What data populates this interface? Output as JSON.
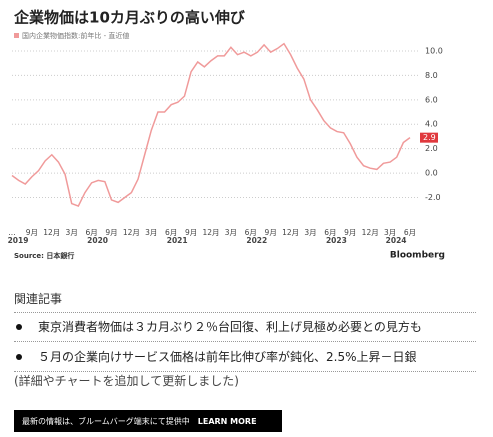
{
  "chart_data": {
    "type": "line",
    "title": "企業物価は10カ月ぶりの高い伸び",
    "source": "Source: 日本銀行",
    "brand": "Bloomberg",
    "categories": [
      "...",
      null,
      null,
      "9月",
      null,
      null,
      "12月",
      null,
      null,
      "3月",
      null,
      null,
      "6月",
      null,
      null,
      "9月",
      null,
      null,
      "12月",
      null,
      null,
      "3月",
      null,
      null,
      "6月",
      null,
      null,
      "9月",
      null,
      null,
      "12月",
      null,
      null,
      "3月",
      null,
      null,
      "6月",
      null,
      null,
      "9月",
      null,
      null,
      "12月",
      null,
      null,
      "3月",
      null,
      null,
      "6月",
      null,
      null,
      "9月",
      null,
      null,
      "12月",
      null,
      null,
      "3月",
      null,
      null,
      "6月"
    ],
    "years": [
      "2019",
      null,
      null,
      null,
      null,
      null,
      null,
      null,
      null,
      null,
      null,
      null,
      "2020",
      null,
      null,
      null,
      null,
      null,
      null,
      null,
      null,
      null,
      null,
      null,
      "2021",
      null,
      null,
      null,
      null,
      null,
      null,
      null,
      null,
      null,
      null,
      null,
      "2022",
      null,
      null,
      null,
      null,
      null,
      null,
      null,
      null,
      null,
      null,
      null,
      "2023",
      null,
      null,
      null,
      null,
      null,
      null,
      null,
      null,
      "2024",
      null,
      null,
      null
    ],
    "series": [
      {
        "name": "国内企業物価指数:前年比 - 直近値",
        "color": "#f09a9a",
        "values": [
          -0.2,
          -0.6,
          -0.9,
          -0.3,
          0.2,
          1.0,
          1.5,
          0.9,
          -0.1,
          -2.5,
          -2.7,
          -1.6,
          -0.8,
          -0.6,
          -0.7,
          -2.2,
          -2.4,
          -2.0,
          -1.6,
          -0.5,
          1.5,
          3.5,
          5.0,
          5.0,
          5.6,
          5.8,
          6.3,
          8.3,
          9.1,
          8.7,
          9.2,
          9.6,
          9.6,
          10.3,
          9.7,
          9.9,
          9.6,
          9.9,
          10.5,
          9.9,
          10.2,
          10.6,
          9.7,
          8.6,
          7.7,
          6.0,
          5.2,
          4.3,
          3.7,
          3.4,
          3.3,
          2.4,
          1.3,
          0.6,
          0.4,
          0.3,
          0.8,
          0.9,
          1.3,
          2.5,
          2.9
        ]
      }
    ],
    "last_label_color": "#e0393e",
    "ylim": [
      -4.5,
      10.9
    ],
    "yticks": [
      {
        "value": -2,
        "label": "-2.0"
      },
      {
        "value": 0,
        "label": "0.0"
      },
      {
        "value": 2,
        "label": "2.0"
      },
      {
        "value": 4,
        "label": "4.0"
      },
      {
        "value": 6,
        "label": "6.0"
      },
      {
        "value": 8,
        "label": "8.0"
      },
      {
        "value": 10,
        "label": "10.0"
      }
    ],
    "grid": true
  },
  "related": {
    "heading": "関連記事",
    "items": [
      "東京消費者物価は３カ月ぶり２％台回復、利上げ見極め必要との見方も",
      "５月の企業向けサービス価格は前年比伸び率が鈍化、2.5%上昇－日銀"
    ]
  },
  "note": "(詳細やチャートを追加して更新しました)",
  "banner": {
    "text": "最新の情報は、ブルームバーグ端末にて提供中",
    "link": "LEARN MORE"
  }
}
